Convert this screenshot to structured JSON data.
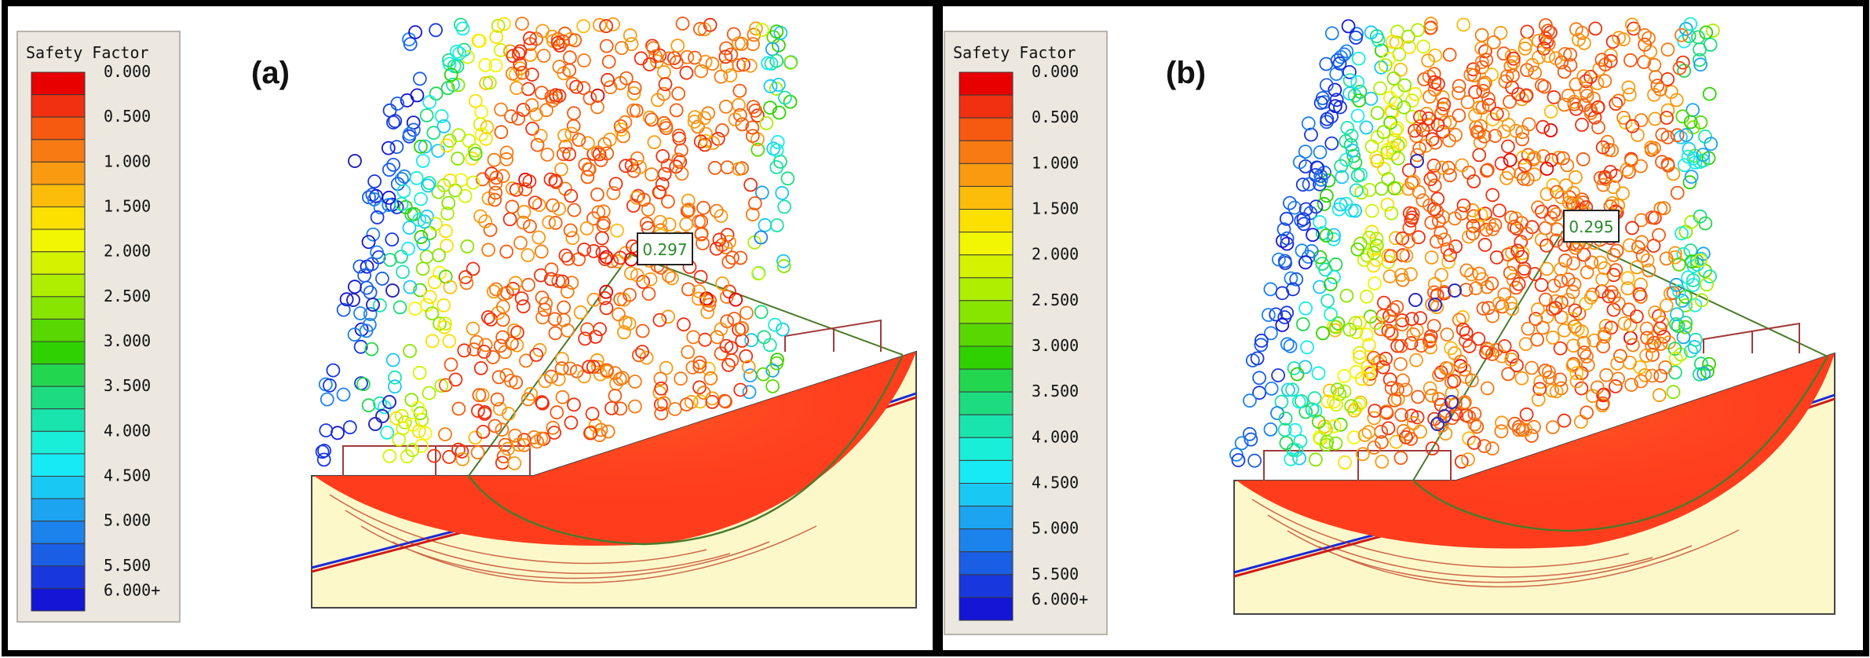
{
  "legend_title": "Safety Factor",
  "legend_labels": [
    "0.000",
    "0.500",
    "1.000",
    "1.500",
    "2.000",
    "2.500",
    "3.000",
    "3.500",
    "4.000",
    "4.500",
    "5.000",
    "5.500",
    "6.000+"
  ],
  "legend_colors": [
    "#e80000",
    "#f03010",
    "#f55a10",
    "#f77a12",
    "#f99a10",
    "#fbbc0a",
    "#fbe000",
    "#f2f600",
    "#d3f300",
    "#afee00",
    "#88e500",
    "#58d800",
    "#2fd200",
    "#23d650",
    "#1ddc80",
    "#1ae4ae",
    "#19eed8",
    "#18eaf5",
    "#1ac8f4",
    "#1ca4f0",
    "#1c82ec",
    "#1a5ee6",
    "#1838de",
    "#1515d6"
  ],
  "panels": [
    {
      "label": "(a)",
      "min_sf": "0.297"
    },
    {
      "label": "(b)",
      "min_sf": "0.295"
    }
  ],
  "colors": {
    "frame": "#000000",
    "legend_bg": "#ece8e0",
    "ground": "#fdf8c9",
    "failure_mass": "#ff3d1d",
    "support": "#a23a3a",
    "circle": "#4a7a2a",
    "water_line_blue": "#1a2ad8",
    "water_line_red": "#d01818"
  }
}
